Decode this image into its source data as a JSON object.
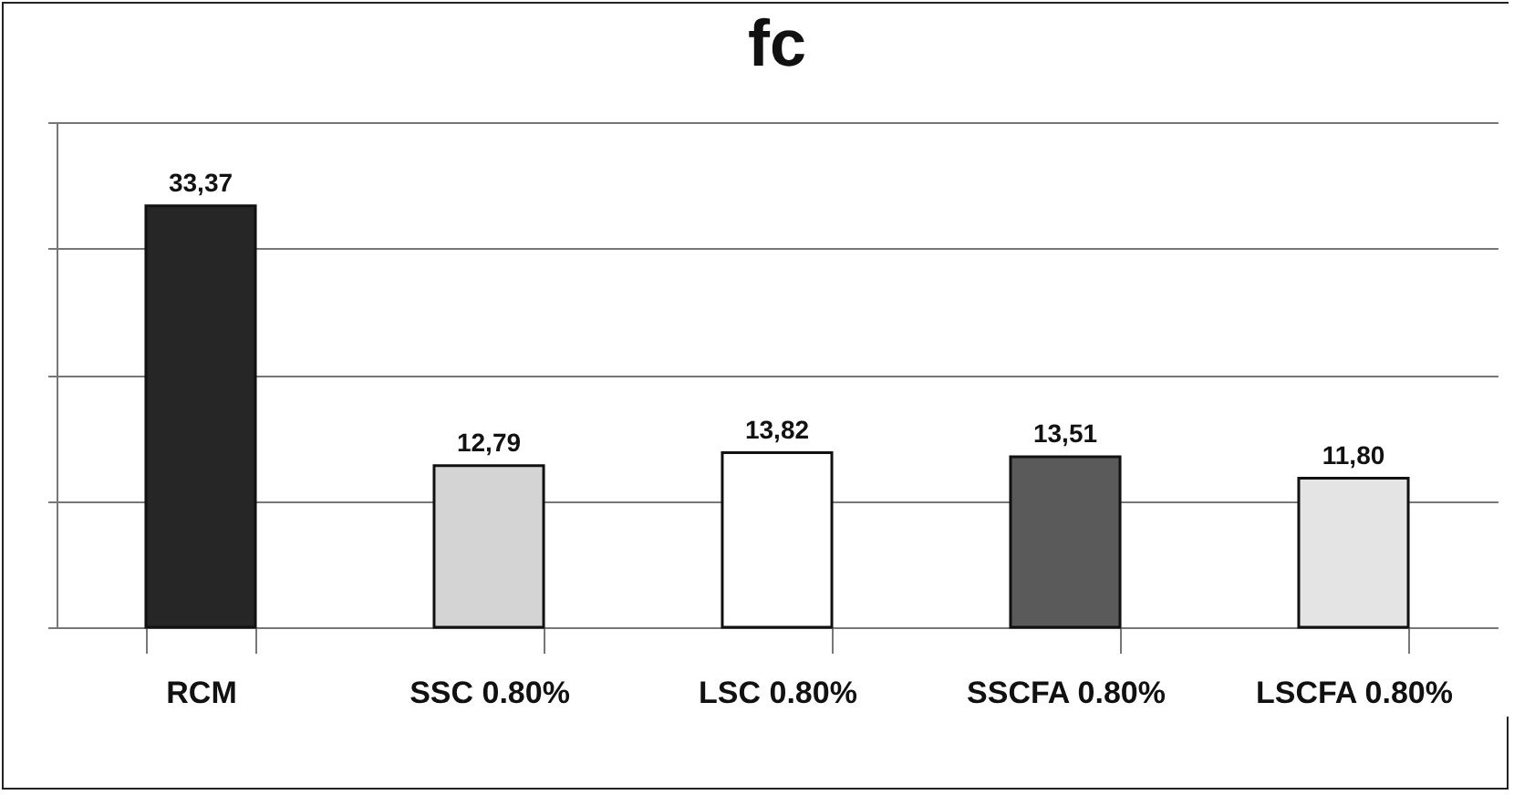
{
  "chart_data": {
    "type": "bar",
    "title": "fc",
    "categories": [
      "RCM",
      "SSC 0.80%",
      "LSC 0.80%",
      "SSCFA 0.80%",
      "LSCFA 0.80%"
    ],
    "values": [
      33.37,
      12.79,
      13.82,
      13.51,
      11.8
    ],
    "value_labels": [
      "33,37",
      "12,79",
      "13,82",
      "13,51",
      "11,80"
    ],
    "colors": [
      "#262626",
      "#d4d4d4",
      "#ffffff",
      "#5a5a5a",
      "#e4e4e4"
    ],
    "ylim": [
      0,
      40
    ],
    "yticks": [
      {
        "value": 0,
        "label": null
      },
      {
        "value": 10,
        "label": null
      },
      {
        "value": 20,
        "label": null
      },
      {
        "value": 30,
        "label": null
      },
      {
        "value": 40,
        "label": null
      }
    ],
    "grid": "y",
    "legend": false
  }
}
